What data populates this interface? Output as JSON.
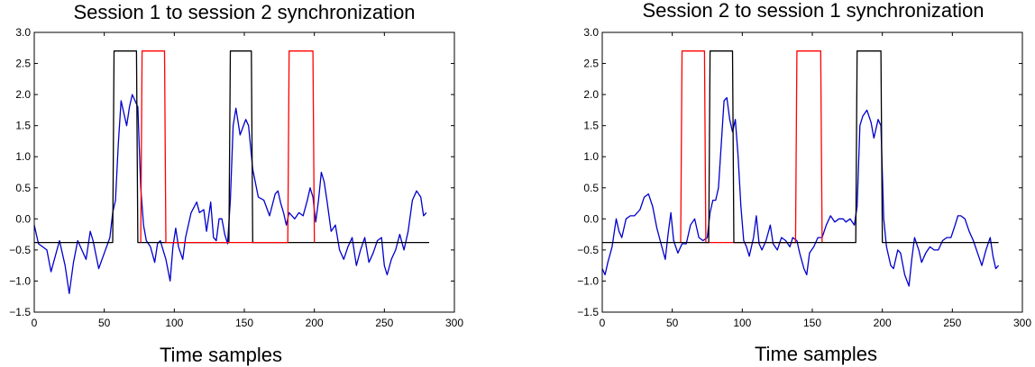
{
  "chart_data": [
    {
      "type": "line",
      "title": "Session 1 to session 2 synchronization",
      "xlabel": "Time samples",
      "ylabel": "",
      "xlim": [
        0,
        300
      ],
      "ylim": [
        -1.5,
        3.0
      ],
      "xticks": [
        "0",
        "50",
        "100",
        "150",
        "200",
        "250",
        "300"
      ],
      "yticks": [
        "−1.5",
        "−1.0",
        "−0.5",
        "0.0",
        "0.5",
        "1.0",
        "1.5",
        "2.0",
        "2.5",
        "3.0"
      ],
      "grid": false,
      "series": [
        {
          "color": "#0000cc",
          "points": [
            [
              0,
              -0.1
            ],
            [
              3,
              -0.4
            ],
            [
              6,
              -0.45
            ],
            [
              9,
              -0.5
            ],
            [
              12,
              -0.85
            ],
            [
              15,
              -0.6
            ],
            [
              18,
              -0.35
            ],
            [
              22,
              -0.75
            ],
            [
              25,
              -1.2
            ],
            [
              28,
              -0.7
            ],
            [
              31,
              -0.35
            ],
            [
              34,
              -0.5
            ],
            [
              37,
              -0.65
            ],
            [
              40,
              -0.2
            ],
            [
              42,
              -0.35
            ],
            [
              46,
              -0.8
            ],
            [
              50,
              -0.55
            ],
            [
              54,
              -0.3
            ],
            [
              56,
              0.1
            ],
            [
              58,
              0.3
            ],
            [
              60,
              1.2
            ],
            [
              62,
              1.9
            ],
            [
              66,
              1.5
            ],
            [
              68,
              1.8
            ],
            [
              70,
              2.0
            ],
            [
              74,
              1.8
            ],
            [
              76,
              0.5
            ],
            [
              78,
              -0.1
            ],
            [
              80,
              -0.35
            ],
            [
              83,
              -0.45
            ],
            [
              86,
              -0.7
            ],
            [
              88,
              -0.4
            ],
            [
              90,
              -0.35
            ],
            [
              92,
              -0.5
            ],
            [
              94,
              -0.65
            ],
            [
              97,
              -1.0
            ],
            [
              99,
              -0.45
            ],
            [
              101,
              -0.15
            ],
            [
              103,
              -0.45
            ],
            [
              106,
              -0.65
            ],
            [
              108,
              -0.3
            ],
            [
              112,
              0.1
            ],
            [
              116,
              0.27
            ],
            [
              118,
              0.1
            ],
            [
              121,
              0.15
            ],
            [
              123,
              -0.2
            ],
            [
              126,
              0.27
            ],
            [
              128,
              -0.3
            ],
            [
              130,
              -0.35
            ],
            [
              132,
              0.0
            ],
            [
              134,
              0.0
            ],
            [
              136,
              -0.25
            ],
            [
              138,
              -0.4
            ],
            [
              140,
              0.3
            ],
            [
              142,
              1.5
            ],
            [
              144,
              1.78
            ],
            [
              147,
              1.35
            ],
            [
              151,
              1.6
            ],
            [
              153,
              1.5
            ],
            [
              156,
              0.8
            ],
            [
              160,
              0.35
            ],
            [
              164,
              0.3
            ],
            [
              168,
              0.05
            ],
            [
              172,
              0.4
            ],
            [
              174,
              0.45
            ],
            [
              176,
              0.25
            ],
            [
              178,
              0.1
            ],
            [
              180,
              -0.1
            ],
            [
              182,
              0.1
            ],
            [
              186,
              0.0
            ],
            [
              189,
              0.1
            ],
            [
              192,
              0.05
            ],
            [
              195,
              0.3
            ],
            [
              197,
              0.5
            ],
            [
              199,
              0.35
            ],
            [
              201,
              -0.05
            ],
            [
              203,
              0.3
            ],
            [
              205,
              0.75
            ],
            [
              207,
              0.6
            ],
            [
              209,
              0.3
            ],
            [
              212,
              -0.2
            ],
            [
              215,
              -0.1
            ],
            [
              218,
              -0.5
            ],
            [
              221,
              -0.65
            ],
            [
              224,
              -0.45
            ],
            [
              227,
              -0.3
            ],
            [
              230,
              -0.75
            ],
            [
              233,
              -0.5
            ],
            [
              236,
              -0.3
            ],
            [
              239,
              -0.7
            ],
            [
              242,
              -0.55
            ],
            [
              245,
              -0.35
            ],
            [
              248,
              -0.3
            ],
            [
              250,
              -0.75
            ],
            [
              252,
              -0.9
            ],
            [
              255,
              -0.65
            ],
            [
              258,
              -0.5
            ],
            [
              261,
              -0.25
            ],
            [
              264,
              -0.5
            ],
            [
              267,
              -0.2
            ],
            [
              270,
              0.3
            ],
            [
              273,
              0.45
            ],
            [
              276,
              0.35
            ],
            [
              278,
              0.05
            ],
            [
              280,
              0.1
            ]
          ]
        },
        {
          "color": "#000000",
          "points": [
            [
              0,
              -0.38
            ],
            [
              56,
              -0.38
            ],
            [
              57,
              2.7
            ],
            [
              73,
              2.7
            ],
            [
              74,
              -0.38
            ],
            [
              139,
              -0.38
            ],
            [
              140,
              2.7
            ],
            [
              155,
              2.7
            ],
            [
              156,
              -0.38
            ],
            [
              282,
              -0.38
            ]
          ]
        },
        {
          "color": "#ff0000",
          "points": [
            [
              76,
              -0.38
            ],
            [
              77,
              2.7
            ],
            [
              93,
              2.7
            ],
            [
              94,
              -0.38
            ],
            [
              181,
              -0.38
            ],
            [
              182,
              2.7
            ],
            [
              199,
              2.7
            ],
            [
              200,
              -0.38
            ]
          ]
        }
      ]
    },
    {
      "type": "line",
      "title": "Session 2 to session 1 synchronization",
      "xlabel": "Time samples",
      "ylabel": "",
      "xlim": [
        0,
        300
      ],
      "ylim": [
        -1.5,
        3.0
      ],
      "xticks": [
        "0",
        "50",
        "100",
        "150",
        "200",
        "250",
        "300"
      ],
      "yticks": [
        "−1.5",
        "−1.0",
        "−0.5",
        "0.0",
        "0.5",
        "1.0",
        "1.5",
        "2.0",
        "2.5",
        "3.0"
      ],
      "grid": false,
      "series": [
        {
          "color": "#0000cc",
          "points": [
            [
              0,
              -0.8
            ],
            [
              2,
              -0.9
            ],
            [
              4,
              -0.7
            ],
            [
              7,
              -0.45
            ],
            [
              10,
              0.0
            ],
            [
              12,
              -0.2
            ],
            [
              14,
              -0.3
            ],
            [
              17,
              0.0
            ],
            [
              20,
              0.05
            ],
            [
              23,
              0.05
            ],
            [
              27,
              0.15
            ],
            [
              30,
              0.35
            ],
            [
              33,
              0.4
            ],
            [
              36,
              0.2
            ],
            [
              39,
              -0.15
            ],
            [
              42,
              -0.4
            ],
            [
              45,
              -0.65
            ],
            [
              47,
              -0.25
            ],
            [
              49,
              0.1
            ],
            [
              51,
              -0.35
            ],
            [
              54,
              -0.55
            ],
            [
              57,
              -0.4
            ],
            [
              60,
              -0.4
            ],
            [
              63,
              -0.1
            ],
            [
              66,
              0.0
            ],
            [
              69,
              -0.3
            ],
            [
              72,
              -0.35
            ],
            [
              75,
              -0.3
            ],
            [
              77,
              0.1
            ],
            [
              79,
              0.3
            ],
            [
              81,
              0.3
            ],
            [
              83,
              0.5
            ],
            [
              85,
              1.2
            ],
            [
              87,
              1.9
            ],
            [
              89,
              1.95
            ],
            [
              91,
              1.6
            ],
            [
              93,
              1.4
            ],
            [
              95,
              1.6
            ],
            [
              97,
              1.0
            ],
            [
              99,
              0.2
            ],
            [
              101,
              -0.35
            ],
            [
              103,
              -0.45
            ],
            [
              105,
              -0.6
            ],
            [
              108,
              -0.3
            ],
            [
              110,
              0.05
            ],
            [
              112,
              -0.4
            ],
            [
              114,
              -0.5
            ],
            [
              117,
              -0.35
            ],
            [
              120,
              -0.1
            ],
            [
              122,
              -0.4
            ],
            [
              125,
              -0.5
            ],
            [
              128,
              -0.3
            ],
            [
              131,
              -0.35
            ],
            [
              134,
              -0.45
            ],
            [
              136,
              -0.3
            ],
            [
              139,
              -0.35
            ],
            [
              141,
              -0.55
            ],
            [
              144,
              -0.8
            ],
            [
              146,
              -0.9
            ],
            [
              148,
              -0.55
            ],
            [
              151,
              -0.45
            ],
            [
              154,
              -0.3
            ],
            [
              157,
              -0.3
            ],
            [
              160,
              -0.1
            ],
            [
              163,
              0.05
            ],
            [
              166,
              -0.05
            ],
            [
              169,
              0.0
            ],
            [
              172,
              0.0
            ],
            [
              174,
              -0.05
            ],
            [
              177,
              0.0
            ],
            [
              180,
              -0.1
            ],
            [
              182,
              0.2
            ],
            [
              184,
              1.5
            ],
            [
              186,
              1.65
            ],
            [
              189,
              1.75
            ],
            [
              192,
              1.55
            ],
            [
              194,
              1.3
            ],
            [
              197,
              1.6
            ],
            [
              199,
              1.5
            ],
            [
              201,
              0.0
            ],
            [
              203,
              -0.45
            ],
            [
              206,
              -0.75
            ],
            [
              208,
              -0.8
            ],
            [
              211,
              -0.5
            ],
            [
              213,
              -0.55
            ],
            [
              216,
              -0.9
            ],
            [
              219,
              -1.08
            ],
            [
              221,
              -0.65
            ],
            [
              223,
              -0.3
            ],
            [
              226,
              -0.5
            ],
            [
              228,
              -0.7
            ],
            [
              231,
              -0.55
            ],
            [
              234,
              -0.45
            ],
            [
              237,
              -0.5
            ],
            [
              240,
              -0.5
            ],
            [
              243,
              -0.35
            ],
            [
              246,
              -0.3
            ],
            [
              249,
              -0.3
            ],
            [
              252,
              -0.1
            ],
            [
              254,
              0.05
            ],
            [
              256,
              0.05
            ],
            [
              259,
              0.0
            ],
            [
              262,
              -0.2
            ],
            [
              265,
              -0.35
            ],
            [
              268,
              -0.55
            ],
            [
              271,
              -0.75
            ],
            [
              274,
              -0.5
            ],
            [
              277,
              -0.3
            ],
            [
              279,
              -0.6
            ],
            [
              281,
              -0.8
            ],
            [
              283,
              -0.75
            ]
          ]
        },
        {
          "color": "#ff0000",
          "points": [
            [
              56,
              -0.38
            ],
            [
              57,
              2.7
            ],
            [
              73,
              2.7
            ],
            [
              74,
              -0.38
            ],
            [
              138,
              -0.38
            ],
            [
              139,
              2.7
            ],
            [
              156,
              2.7
            ],
            [
              157,
              -0.38
            ]
          ]
        },
        {
          "color": "#000000",
          "points": [
            [
              0,
              -0.38
            ],
            [
              76,
              -0.38
            ],
            [
              77,
              2.7
            ],
            [
              93,
              2.7
            ],
            [
              94,
              -0.38
            ],
            [
              181,
              -0.38
            ],
            [
              182,
              2.7
            ],
            [
              199,
              2.7
            ],
            [
              200,
              -0.38
            ],
            [
              283,
              -0.38
            ]
          ]
        }
      ]
    }
  ]
}
